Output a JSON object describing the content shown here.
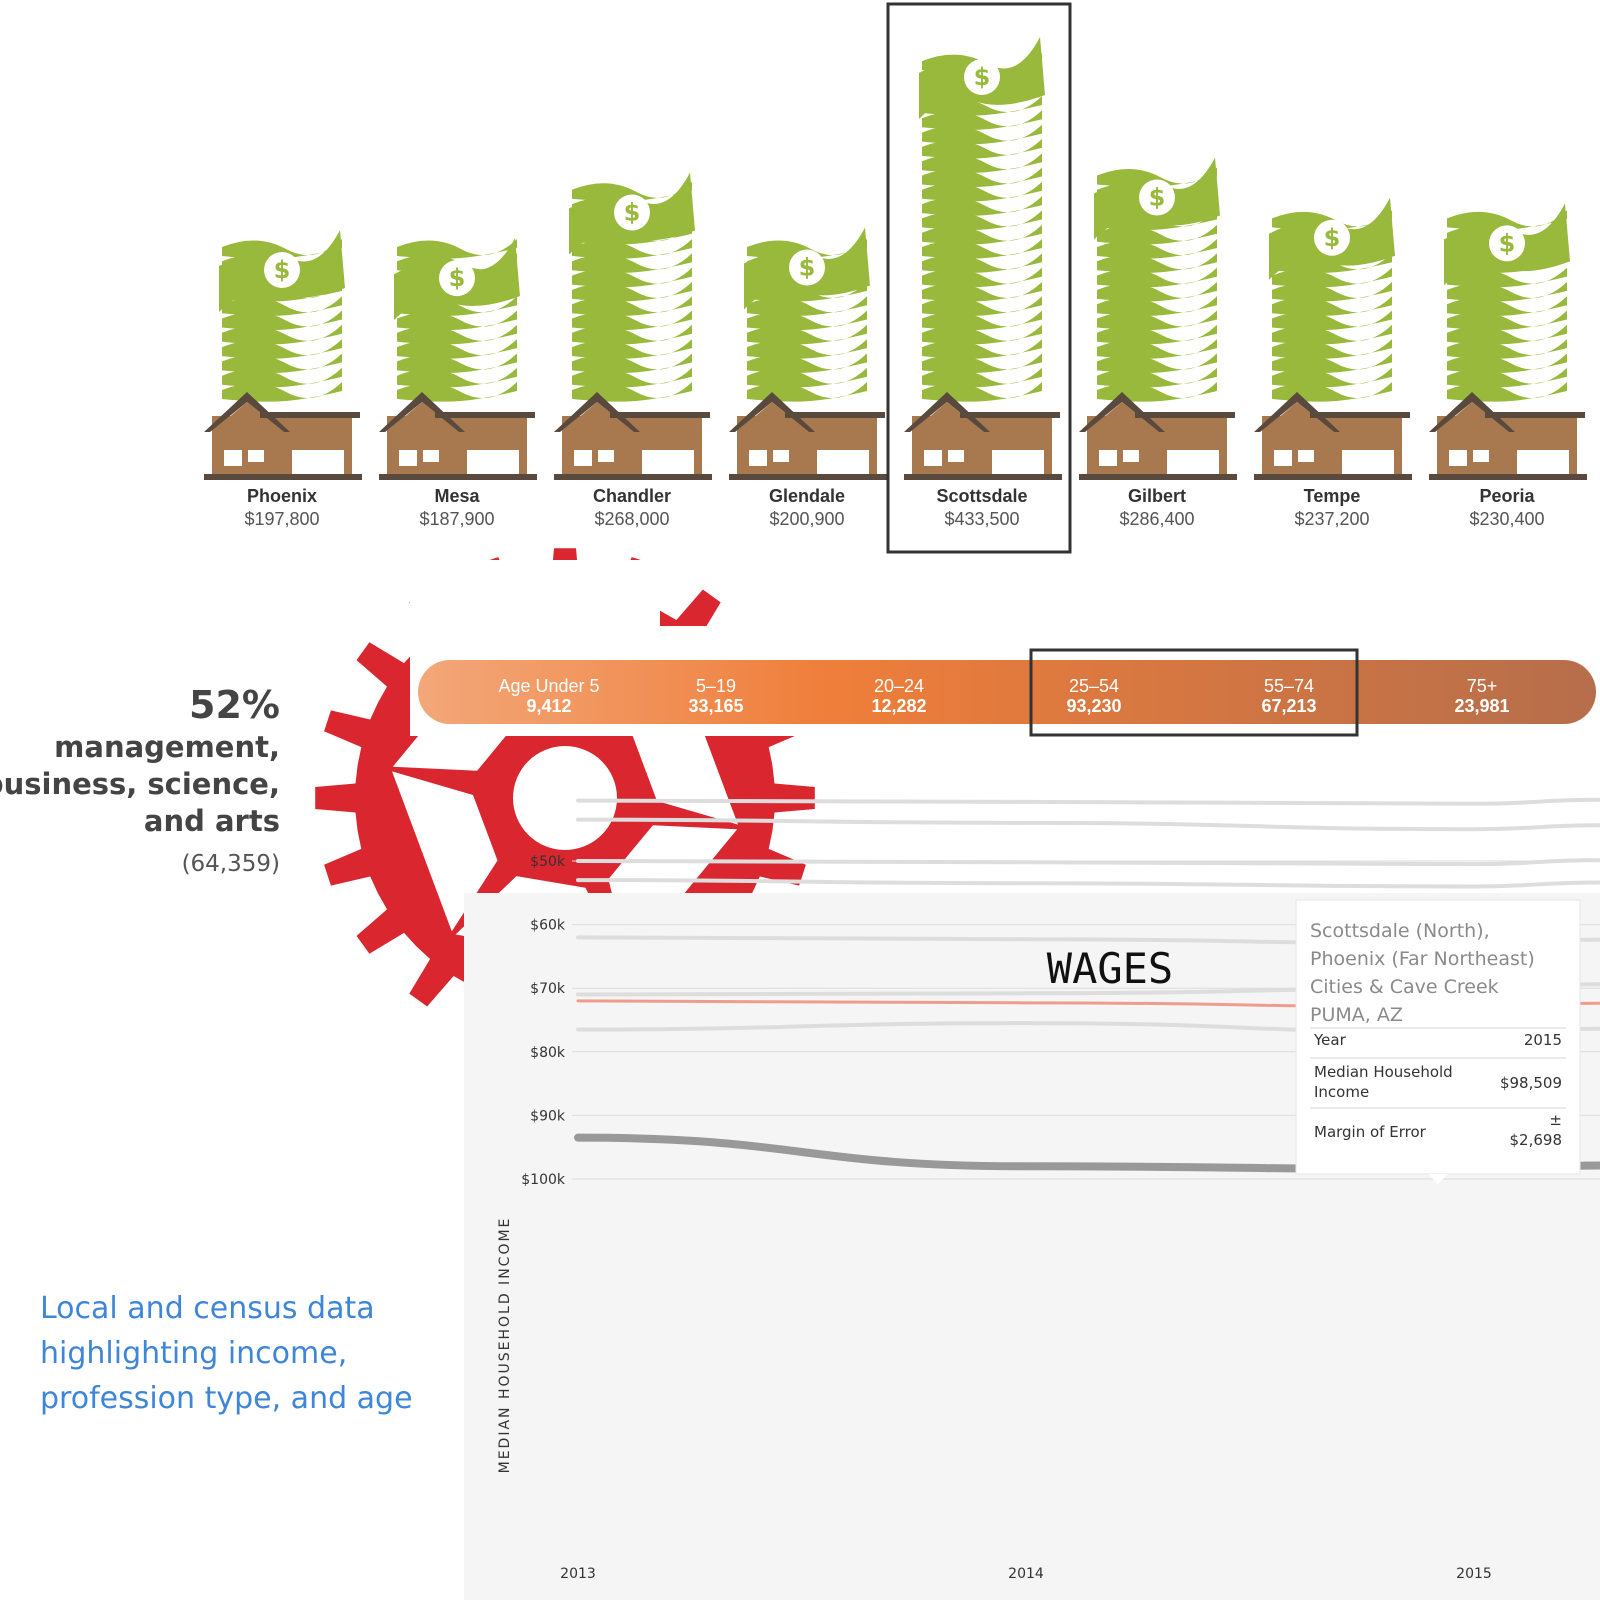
{
  "income_cities": {
    "highlighted": "Scottsdale",
    "items": [
      {
        "name": "Phoenix",
        "value_label": "$197,800",
        "value": 197800
      },
      {
        "name": "Mesa",
        "value_label": "$187,900",
        "value": 187900
      },
      {
        "name": "Chandler",
        "value_label": "$268,000",
        "value": 268000
      },
      {
        "name": "Glendale",
        "value_label": "$200,900",
        "value": 200900
      },
      {
        "name": "Scottsdale",
        "value_label": "$433,500",
        "value": 433500
      },
      {
        "name": "Gilbert",
        "value_label": "$286,400",
        "value": 286400
      },
      {
        "name": "Tempe",
        "value_label": "$237,200",
        "value": 237200
      },
      {
        "name": "Peoria",
        "value_label": "$230,400",
        "value": 230400
      }
    ]
  },
  "profession": {
    "percent": "52%",
    "line1": "management,",
    "line2": "business, science,",
    "line3": "and arts",
    "count": "(64,359)"
  },
  "age": {
    "groups": [
      {
        "label": "Age Under 5",
        "value": "9,412"
      },
      {
        "label": "5–19",
        "value": "33,165"
      },
      {
        "label": "20–24",
        "value": "12,282"
      },
      {
        "label": "25–54",
        "value": "93,230"
      },
      {
        "label": "55–74",
        "value": "67,213"
      },
      {
        "label": "75+",
        "value": "23,981"
      }
    ],
    "highlighted": [
      "25–54",
      "55–74"
    ]
  },
  "caption": {
    "line1": "Local and census data",
    "line2": "highlighting income,",
    "line3": "profession type, and age"
  },
  "chart_data": {
    "type": "line",
    "title": "WAGES",
    "ylabel": "MEDIAN HOUSEHOLD INCOME",
    "xlabel": "",
    "x": [
      2013,
      2014,
      2015
    ],
    "xticks": [
      "2013",
      "2014",
      "2015"
    ],
    "yticks": [
      "$100k",
      "$90k",
      "$80k",
      "$70k",
      "$60k",
      "$50k"
    ],
    "yticks_values": [
      100000,
      90000,
      80000,
      70000,
      60000,
      50000
    ],
    "ylim": [
      40000,
      100000
    ],
    "series": [
      {
        "values": [
          93500,
          98000,
          98509
        ],
        "color": "#999999",
        "highlight": true
      },
      {
        "values": [
          76500,
          75500,
          77000
        ],
        "color": "#dddddd"
      },
      {
        "values": [
          72000,
          72300,
          73000
        ],
        "color": "#ef9c8c",
        "emphasis": true
      },
      {
        "values": [
          71000,
          70800,
          70000
        ],
        "color": "#dddddd"
      },
      {
        "values": [
          62000,
          62300,
          63000
        ],
        "color": "#dddddd"
      },
      {
        "values": [
          53000,
          53500,
          54000
        ],
        "color": "#dddddd"
      },
      {
        "values": [
          50000,
          50200,
          50500
        ],
        "color": "#dddddd"
      },
      {
        "values": [
          43500,
          44000,
          45000
        ],
        "color": "#dddddd"
      },
      {
        "values": [
          40500,
          40700,
          41000
        ],
        "color": "#dddddd"
      }
    ],
    "tooltip": {
      "title_lines": [
        "Scottsdale (North),",
        "Phoenix (Far Northeast)",
        "Cities & Cave Creek",
        "PUMA, AZ"
      ],
      "rows": [
        {
          "label": "Year",
          "value": "2015"
        },
        {
          "label_lines": [
            "Median Household",
            "Income"
          ],
          "value": "$98,509"
        },
        {
          "label": "Margin of Error",
          "value_lines": [
            "±",
            "$2,698"
          ]
        }
      ]
    }
  },
  "colors": {
    "money": "#99b93c",
    "house_body": "#a8794f",
    "house_roof": "#5a4a3e",
    "gear": "#d9262f",
    "age_start": "#f3a779",
    "age_mid": "#ef7e3a",
    "age_end": "#b66e4b",
    "caption": "#3f86d8"
  }
}
